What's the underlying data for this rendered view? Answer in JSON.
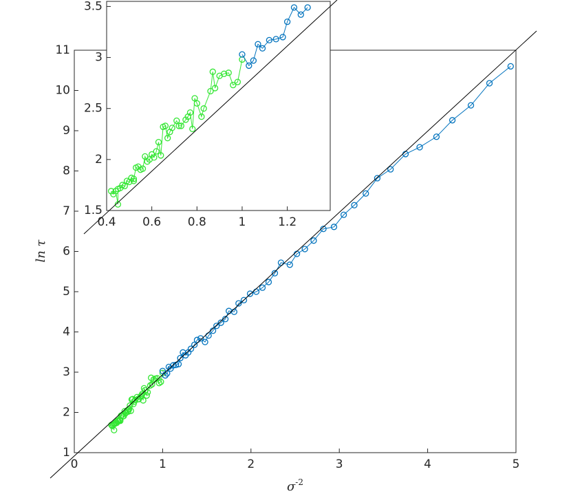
{
  "chart_data": [
    {
      "type": "line",
      "xlabel": "σ",
      "xlabel_sup": "-2",
      "ylabel": "ln τ",
      "xlim": [
        0,
        5
      ],
      "ylim": [
        1,
        11
      ],
      "xticks": [
        0,
        1,
        2,
        3,
        4,
        5
      ],
      "yticks": [
        1,
        2,
        3,
        4,
        5,
        6,
        7,
        8,
        9,
        10,
        11
      ],
      "series": [
        {
          "color": "#33e633",
          "x": [
            0.42,
            0.43,
            0.44,
            0.45,
            0.45,
            0.46,
            0.47,
            0.48,
            0.49,
            0.5,
            0.51,
            0.52,
            0.52,
            0.53,
            0.54,
            0.55,
            0.56,
            0.57,
            0.58,
            0.59,
            0.6,
            0.61,
            0.62,
            0.63,
            0.64,
            0.65,
            0.66,
            0.67,
            0.68,
            0.69,
            0.71,
            0.72,
            0.73,
            0.75,
            0.76,
            0.77,
            0.78,
            0.79,
            0.8,
            0.82,
            0.83,
            0.86,
            0.87,
            0.88,
            0.9,
            0.92,
            0.94,
            0.96,
            0.98,
            1.0
          ],
          "values": [
            1.69,
            1.66,
            1.69,
            1.56,
            1.71,
            1.72,
            1.75,
            1.74,
            1.79,
            1.78,
            1.82,
            1.79,
            1.81,
            1.92,
            1.93,
            1.9,
            1.91,
            2.03,
            1.98,
            2.0,
            2.05,
            2.02,
            2.08,
            2.17,
            2.04,
            2.32,
            2.33,
            2.21,
            2.27,
            2.31,
            2.38,
            2.33,
            2.33,
            2.39,
            2.42,
            2.46,
            2.3,
            2.6,
            2.55,
            2.42,
            2.5,
            2.67,
            2.86,
            2.7,
            2.82,
            2.84,
            2.85,
            2.73,
            2.76,
            2.98
          ]
        },
        {
          "color": "#0072bd",
          "x": [
            1.0,
            1.03,
            1.05,
            1.07,
            1.09,
            1.12,
            1.15,
            1.18,
            1.2,
            1.23,
            1.26,
            1.29,
            1.32,
            1.36,
            1.39,
            1.43,
            1.48,
            1.52,
            1.57,
            1.61,
            1.66,
            1.71,
            1.75,
            1.81,
            1.86,
            1.92,
            1.99,
            2.06,
            2.13,
            2.2,
            2.27,
            2.34,
            2.44,
            2.52,
            2.61,
            2.71,
            2.82,
            2.94,
            3.05,
            3.17,
            3.3,
            3.43,
            3.58,
            3.75,
            3.91,
            4.1,
            4.28,
            4.49,
            4.7,
            4.94
          ],
          "values": [
            3.03,
            2.92,
            2.97,
            3.13,
            3.09,
            3.17,
            3.18,
            3.2,
            3.35,
            3.49,
            3.42,
            3.49,
            3.58,
            3.68,
            3.8,
            3.84,
            3.75,
            3.91,
            4.03,
            4.15,
            4.23,
            4.32,
            4.52,
            4.5,
            4.71,
            4.79,
            4.95,
            5.0,
            5.1,
            5.24,
            5.46,
            5.72,
            5.67,
            5.94,
            6.06,
            6.27,
            6.56,
            6.61,
            6.91,
            7.15,
            7.44,
            7.82,
            8.04,
            8.42,
            8.59,
            8.85,
            9.26,
            9.63,
            10.18,
            10.6
          ]
        }
      ]
    },
    {
      "type": "line",
      "xlim": [
        0.4,
        1.39
      ],
      "ylim": [
        1.5,
        3.55
      ],
      "xticks": [
        0.4,
        0.6,
        0.8,
        1,
        1.2
      ],
      "yticks": [
        1.5,
        2,
        2.5,
        3,
        3.5
      ],
      "series": [
        {
          "color": "#33e633",
          "x": [
            0.42,
            0.43,
            0.44,
            0.45,
            0.45,
            0.46,
            0.47,
            0.48,
            0.49,
            0.5,
            0.51,
            0.52,
            0.52,
            0.53,
            0.54,
            0.55,
            0.56,
            0.57,
            0.58,
            0.59,
            0.6,
            0.61,
            0.62,
            0.63,
            0.64,
            0.65,
            0.66,
            0.67,
            0.68,
            0.69,
            0.71,
            0.72,
            0.73,
            0.75,
            0.76,
            0.77,
            0.78,
            0.79,
            0.8,
            0.82,
            0.83,
            0.86,
            0.87,
            0.88,
            0.9,
            0.92,
            0.94,
            0.96,
            0.98,
            1.0
          ],
          "values": [
            1.69,
            1.66,
            1.69,
            1.56,
            1.71,
            1.72,
            1.75,
            1.74,
            1.79,
            1.78,
            1.82,
            1.79,
            1.81,
            1.92,
            1.93,
            1.9,
            1.91,
            2.03,
            1.98,
            2.0,
            2.05,
            2.02,
            2.08,
            2.17,
            2.04,
            2.32,
            2.33,
            2.21,
            2.27,
            2.31,
            2.38,
            2.33,
            2.33,
            2.39,
            2.42,
            2.46,
            2.3,
            2.6,
            2.55,
            2.42,
            2.5,
            2.67,
            2.86,
            2.7,
            2.82,
            2.84,
            2.85,
            2.73,
            2.76,
            2.98
          ]
        },
        {
          "color": "#0072bd",
          "x": [
            1.0,
            1.03,
            1.05,
            1.07,
            1.09,
            1.12,
            1.15,
            1.18,
            1.2,
            1.23,
            1.26,
            1.29
          ],
          "values": [
            3.03,
            2.92,
            2.97,
            3.13,
            3.09,
            3.17,
            3.18,
            3.2,
            3.35,
            3.49,
            3.42,
            3.49
          ]
        }
      ]
    }
  ]
}
